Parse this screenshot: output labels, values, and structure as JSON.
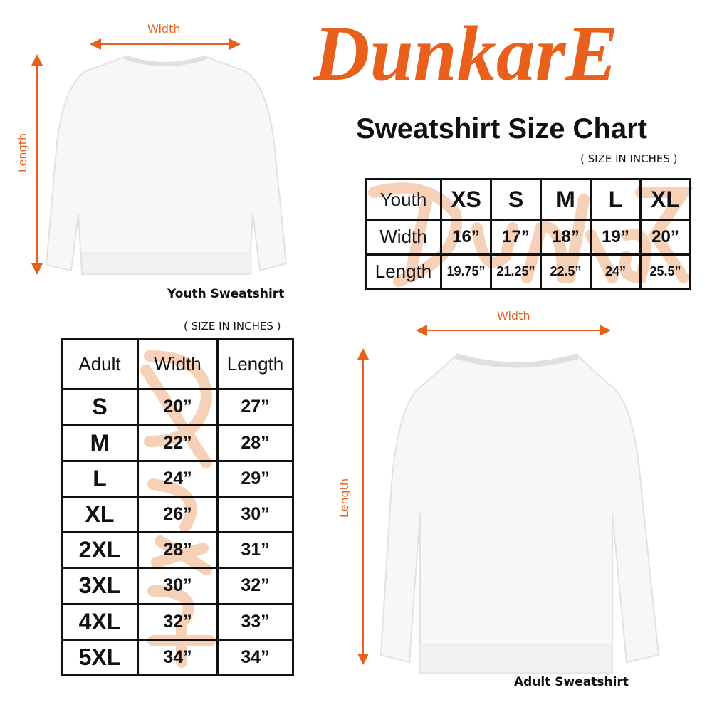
{
  "brand": {
    "logo_text": "DunkarE",
    "color": "#e8601c"
  },
  "title": "Sweatshirt Size Chart",
  "youth": {
    "caption": "Youth Sweatshirt",
    "width_label": "Width",
    "length_label": "Length",
    "units_note": "( SIZE IN INCHES )",
    "table": {
      "header": [
        "Youth",
        "XS",
        "S",
        "M",
        "L",
        "XL"
      ],
      "rows": [
        [
          "Width",
          "16”",
          "17”",
          "18”",
          "19”",
          "20”"
        ],
        [
          "Length",
          "19.75”",
          "21.25”",
          "22.5”",
          "24”",
          "25.5”"
        ]
      ]
    }
  },
  "adult": {
    "caption": "Adult Sweatshirt",
    "width_label": "Width",
    "length_label": "Length",
    "units_note": "( SIZE IN INCHES )",
    "table": {
      "header": [
        "Adult",
        "Width",
        "Length"
      ],
      "rows": [
        [
          "S",
          "20”",
          "27”"
        ],
        [
          "M",
          "22”",
          "28”"
        ],
        [
          "L",
          "24”",
          "29”"
        ],
        [
          "XL",
          "26”",
          "30”"
        ],
        [
          "2XL",
          "28”",
          "31”"
        ],
        [
          "3XL",
          "30”",
          "32”"
        ],
        [
          "4XL",
          "32”",
          "33”"
        ],
        [
          "5XL",
          "34”",
          "34”"
        ]
      ]
    }
  }
}
